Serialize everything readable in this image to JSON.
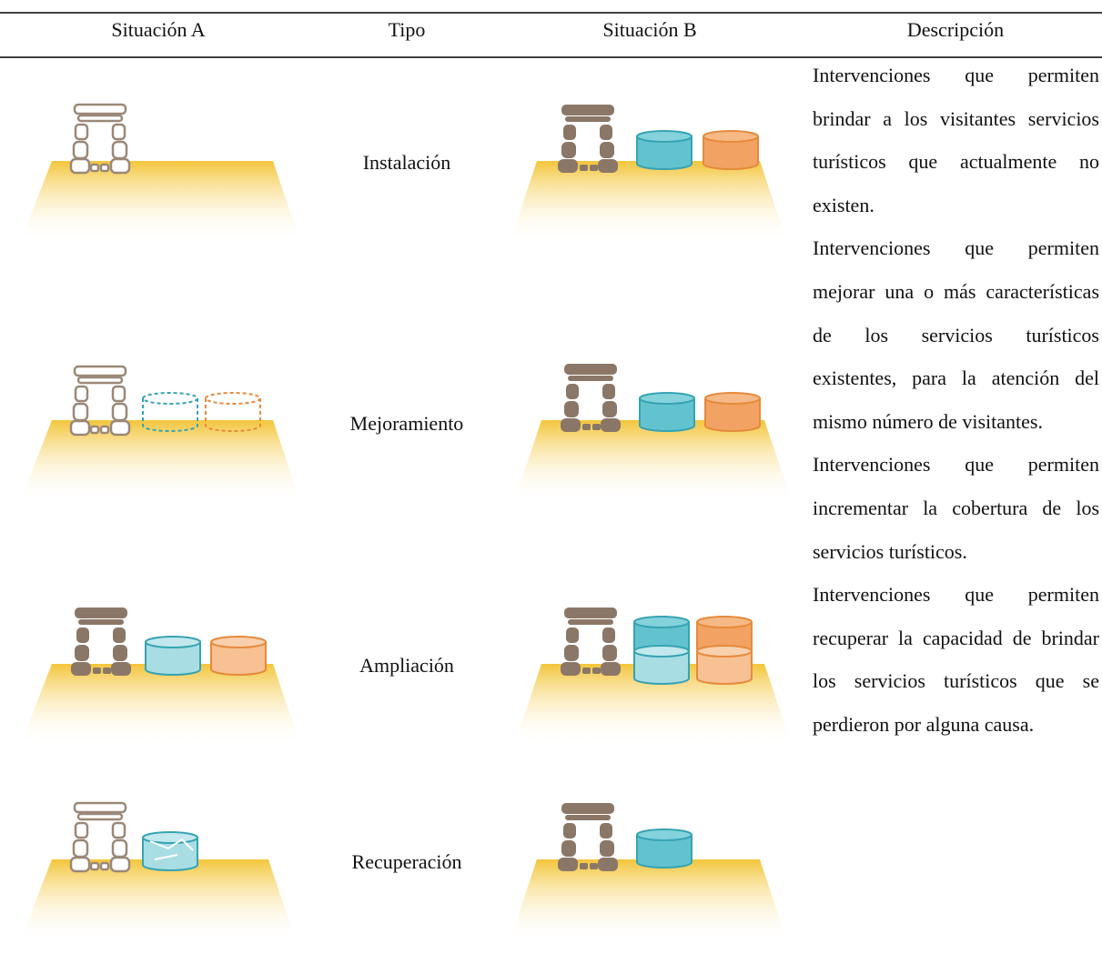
{
  "header": {
    "columns": [
      "Situación A",
      "Tipo",
      "Situación B",
      "Descripción"
    ]
  },
  "rows": [
    {
      "type": "Instalación",
      "description": "Intervenciones que permiten brindar a los visitantes servicios turísticos que actualmente no existen."
    },
    {
      "type": "Mejoramiento",
      "description": "Intervenciones que permiten mejorar una o más características de los servicios turísticos existentes, para la atención del mismo número de visitantes."
    },
    {
      "type": "Ampliación",
      "description": "Intervenciones que permiten incrementar la cobertura de los servicios turísticos."
    },
    {
      "type": "Recuperación",
      "description": "Intervenciones que permiten recuperar la capacidad de brindar los servicios turísticos que se perdieron por alguna causa."
    }
  ]
}
